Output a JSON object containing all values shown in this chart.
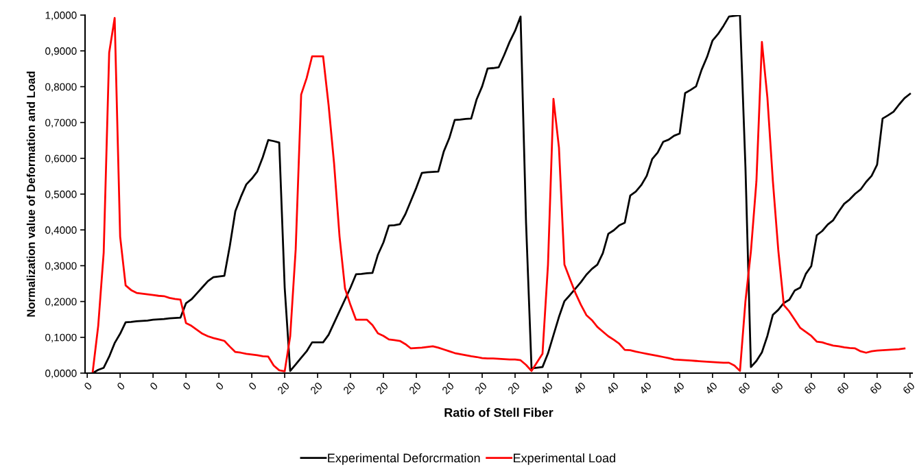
{
  "chart_data": {
    "type": "line",
    "xlabel": "Ratio of Stell Fiber",
    "ylabel": "Normalization value of Deformation and Load",
    "categories": [
      "0",
      null,
      null,
      null,
      null,
      null,
      "0",
      null,
      null,
      null,
      null,
      null,
      "0",
      null,
      null,
      null,
      null,
      null,
      "0",
      null,
      null,
      null,
      null,
      null,
      "0",
      null,
      null,
      null,
      null,
      null,
      "0",
      null,
      null,
      null,
      null,
      null,
      "20",
      null,
      null,
      null,
      null,
      null,
      "20",
      null,
      null,
      null,
      null,
      null,
      "20",
      null,
      null,
      null,
      null,
      null,
      "20",
      null,
      null,
      null,
      null,
      null,
      "20",
      null,
      null,
      null,
      null,
      null,
      "20",
      null,
      null,
      null,
      null,
      null,
      "20",
      null,
      null,
      null,
      null,
      null,
      "20",
      null,
      null,
      null,
      null,
      null,
      "40",
      null,
      null,
      null,
      null,
      null,
      "40",
      null,
      null,
      null,
      null,
      null,
      "40",
      null,
      null,
      null,
      null,
      null,
      "40",
      null,
      null,
      null,
      null,
      null,
      "40",
      null,
      null,
      null,
      null,
      null,
      "40",
      null,
      null,
      null,
      null,
      null,
      "60",
      null,
      null,
      null,
      null,
      null,
      "60",
      null,
      null,
      null,
      null,
      null,
      "60",
      null,
      null,
      null,
      null,
      null,
      "60",
      null,
      null,
      null,
      null,
      null,
      "60",
      null,
      null,
      null,
      null,
      null,
      "60"
    ],
    "ylim": [
      0,
      1
    ],
    "yticks": [
      {
        "value": 0,
        "label": "0,0000"
      },
      {
        "value": 0.1,
        "label": "0,1000"
      },
      {
        "value": 0.2,
        "label": "0,2000"
      },
      {
        "value": 0.3,
        "label": "0,3000"
      },
      {
        "value": 0.4,
        "label": "0,4000"
      },
      {
        "value": 0.5,
        "label": "0,5000"
      },
      {
        "value": 0.6,
        "label": "0,6000"
      },
      {
        "value": 0.7,
        "label": "0,7000"
      },
      {
        "value": 0.8,
        "label": "0,8000"
      },
      {
        "value": 0.9,
        "label": "0,9000"
      },
      {
        "value": 1,
        "label": "1,0000"
      }
    ],
    "grid": false,
    "legend": "bottom",
    "marker": "none",
    "line_style": "solid",
    "series": [
      {
        "name": "Experimental Deforcrmation",
        "color": "#000000",
        "values": [
          null,
          0,
          0.009,
          0.015,
          0.046,
          0.084,
          0.11,
          0.142,
          0.143,
          0.145,
          0.146,
          0.147,
          0.149,
          0.15,
          0.151,
          0.153,
          0.154,
          0.155,
          0.195,
          0.206,
          0.223,
          0.24,
          0.257,
          0.268,
          0.27,
          0.272,
          0.356,
          0.452,
          0.492,
          0.527,
          0.543,
          0.563,
          0.603,
          0.651,
          0.648,
          0.644,
          0.238,
          0.006,
          0.024,
          0.043,
          0.061,
          0.086,
          0.086,
          0.086,
          0.107,
          0.14,
          0.173,
          0.206,
          0.239,
          0.276,
          0.277,
          0.279,
          0.28,
          0.331,
          0.365,
          0.412,
          0.413,
          0.416,
          0.444,
          0.481,
          0.518,
          0.559,
          0.561,
          0.562,
          0.563,
          0.619,
          0.656,
          0.707,
          0.708,
          0.71,
          0.711,
          0.765,
          0.801,
          0.851,
          0.852,
          0.854,
          0.888,
          0.925,
          0.956,
          0.996,
          0.42,
          0.013,
          0.015,
          0.017,
          0.055,
          0.106,
          0.157,
          0.201,
          0.218,
          0.236,
          0.254,
          0.275,
          0.291,
          0.303,
          0.335,
          0.389,
          0.399,
          0.413,
          0.42,
          0.496,
          0.507,
          0.525,
          0.551,
          0.598,
          0.616,
          0.646,
          0.652,
          0.663,
          0.669,
          0.782,
          0.791,
          0.801,
          0.847,
          0.883,
          0.929,
          0.947,
          0.97,
          0.996,
          0.998,
          1.0,
          0.575,
          0.017,
          0.034,
          0.058,
          0.104,
          0.163,
          0.177,
          0.196,
          0.205,
          0.231,
          0.239,
          0.277,
          0.299,
          0.385,
          0.397,
          0.415,
          0.427,
          0.451,
          0.473,
          0.485,
          0.501,
          0.513,
          0.534,
          0.551,
          0.582,
          0.711,
          0.72,
          0.73,
          0.75,
          0.768,
          0.78
        ]
      },
      {
        "name": "Experimental Load",
        "color": "#ff0000",
        "values": [
          null,
          0.004,
          0.132,
          0.337,
          0.895,
          0.992,
          0.381,
          0.245,
          0.232,
          0.224,
          0.222,
          0.22,
          0.218,
          0.216,
          0.215,
          0.21,
          0.207,
          0.205,
          0.14,
          0.132,
          0.121,
          0.11,
          0.103,
          0.098,
          0.094,
          0.09,
          0.074,
          0.059,
          0.057,
          0.054,
          0.052,
          0.05,
          0.047,
          0.046,
          0.021,
          0.008,
          0.005,
          0.103,
          0.345,
          0.778,
          0.824,
          0.885,
          0.885,
          0.885,
          0.749,
          0.586,
          0.381,
          0.236,
          0.19,
          0.149,
          0.149,
          0.149,
          0.134,
          0.111,
          0.104,
          0.094,
          0.092,
          0.09,
          0.081,
          0.069,
          0.07,
          0.071,
          0.073,
          0.075,
          0.071,
          0.066,
          0.061,
          0.056,
          0.053,
          0.05,
          0.047,
          0.045,
          0.042,
          0.041,
          0.041,
          0.04,
          0.039,
          0.038,
          0.038,
          0.036,
          0.023,
          0.006,
          0.03,
          0.054,
          0.303,
          0.766,
          0.63,
          0.303,
          0.263,
          0.224,
          0.191,
          0.162,
          0.148,
          0.129,
          0.116,
          0.103,
          0.093,
          0.082,
          0.065,
          0.064,
          0.06,
          0.057,
          0.054,
          0.051,
          0.048,
          0.045,
          0.042,
          0.038,
          0.037,
          0.036,
          0.035,
          0.034,
          0.033,
          0.032,
          0.031,
          0.03,
          0.029,
          0.029,
          0.021,
          0.006,
          0.201,
          0.341,
          0.536,
          0.925,
          0.77,
          0.536,
          0.341,
          0.19,
          0.172,
          0.149,
          0.126,
          0.115,
          0.104,
          0.088,
          0.086,
          0.081,
          0.077,
          0.075,
          0.072,
          0.07,
          0.069,
          0.061,
          0.057,
          0.061,
          0.063,
          0.064,
          0.065,
          0.066,
          0.067,
          0.069,
          null
        ]
      }
    ]
  }
}
